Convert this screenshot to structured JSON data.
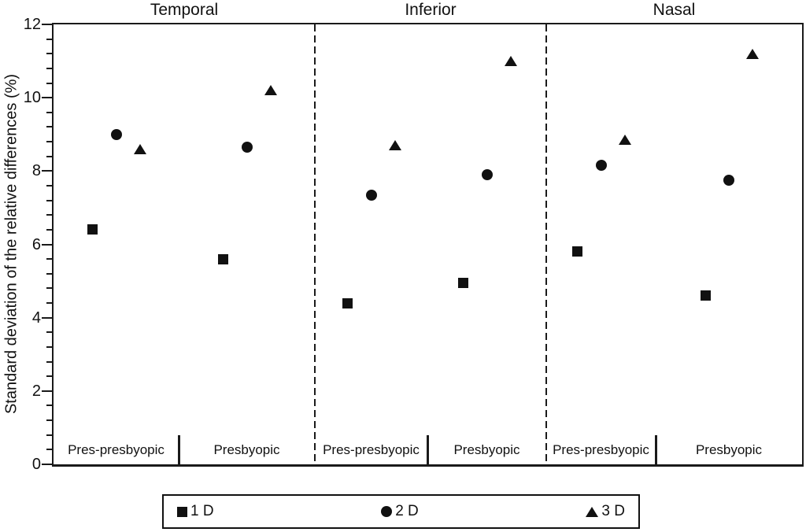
{
  "chart_data": {
    "type": "scatter",
    "title": "",
    "ylabel": "Standard deviation of the relative differences (%)",
    "ylim": [
      0,
      12
    ],
    "yticks": [
      0,
      2,
      4,
      6,
      8,
      10,
      12
    ],
    "y_minor_ticks_per_major": 4,
    "grid": false,
    "legend_position": "bottom",
    "marker_color": "#111111",
    "background_color": "#ffffff",
    "panels": [
      {
        "title": "Temporal",
        "groups": [
          {
            "label": "Pres-presbyopic",
            "values": [
              6.4,
              9.0,
              8.6
            ]
          },
          {
            "label": "Presbyopic",
            "values": [
              5.6,
              8.65,
              10.2
            ]
          }
        ]
      },
      {
        "title": "Inferior",
        "groups": [
          {
            "label": "Pres-presbyopic",
            "values": [
              4.4,
              7.35,
              8.7
            ]
          },
          {
            "label": "Presbyopic",
            "values": [
              4.95,
              7.9,
              11.0
            ]
          }
        ]
      },
      {
        "title": "Nasal",
        "groups": [
          {
            "label": "Pres-presbyopic",
            "values": [
              5.8,
              8.15,
              8.85
            ]
          },
          {
            "label": "Presbyopic",
            "values": [
              4.6,
              7.75,
              11.2
            ]
          }
        ]
      }
    ],
    "series": [
      {
        "name": "1 D",
        "marker": "square"
      },
      {
        "name": "2 D",
        "marker": "circle"
      },
      {
        "name": "3 D",
        "marker": "triangle"
      }
    ]
  }
}
